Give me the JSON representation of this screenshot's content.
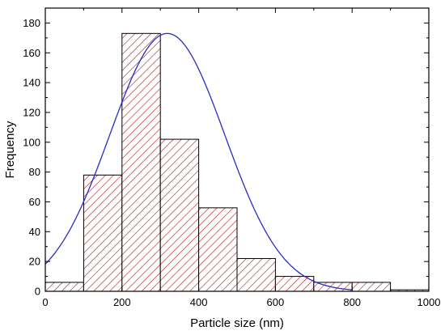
{
  "chart_data": {
    "type": "bar",
    "subtype": "histogram-with-normal-fit",
    "xlabel": "Particle size (nm)",
    "ylabel": "Frequency",
    "xlim": [
      0,
      1000
    ],
    "ylim": [
      0,
      190
    ],
    "x_ticks": [
      0,
      200,
      400,
      600,
      800,
      1000
    ],
    "y_ticks": [
      0,
      20,
      40,
      60,
      80,
      100,
      120,
      140,
      160,
      180
    ],
    "bins": [
      {
        "x0": 0,
        "x1": 100,
        "value": 6
      },
      {
        "x0": 100,
        "x1": 200,
        "value": 78
      },
      {
        "x0": 200,
        "x1": 300,
        "value": 173
      },
      {
        "x0": 300,
        "x1": 400,
        "value": 102
      },
      {
        "x0": 400,
        "x1": 500,
        "value": 56
      },
      {
        "x0": 500,
        "x1": 600,
        "value": 22
      },
      {
        "x0": 600,
        "x1": 700,
        "value": 10
      },
      {
        "x0": 700,
        "x1": 800,
        "value": 6
      },
      {
        "x0": 800,
        "x1": 900,
        "value": 6
      },
      {
        "x0": 900,
        "x1": 1000,
        "value": 1
      }
    ],
    "fit": {
      "type": "normal",
      "mean": 318,
      "sigma": 150,
      "peak": 173
    },
    "colors": {
      "bar_hatch": "#b02a2a",
      "bar_fill": "#ffffff",
      "bar_edge": "#000000",
      "fit_line": "#2b2bc8"
    },
    "grid": false,
    "legend": "none"
  }
}
